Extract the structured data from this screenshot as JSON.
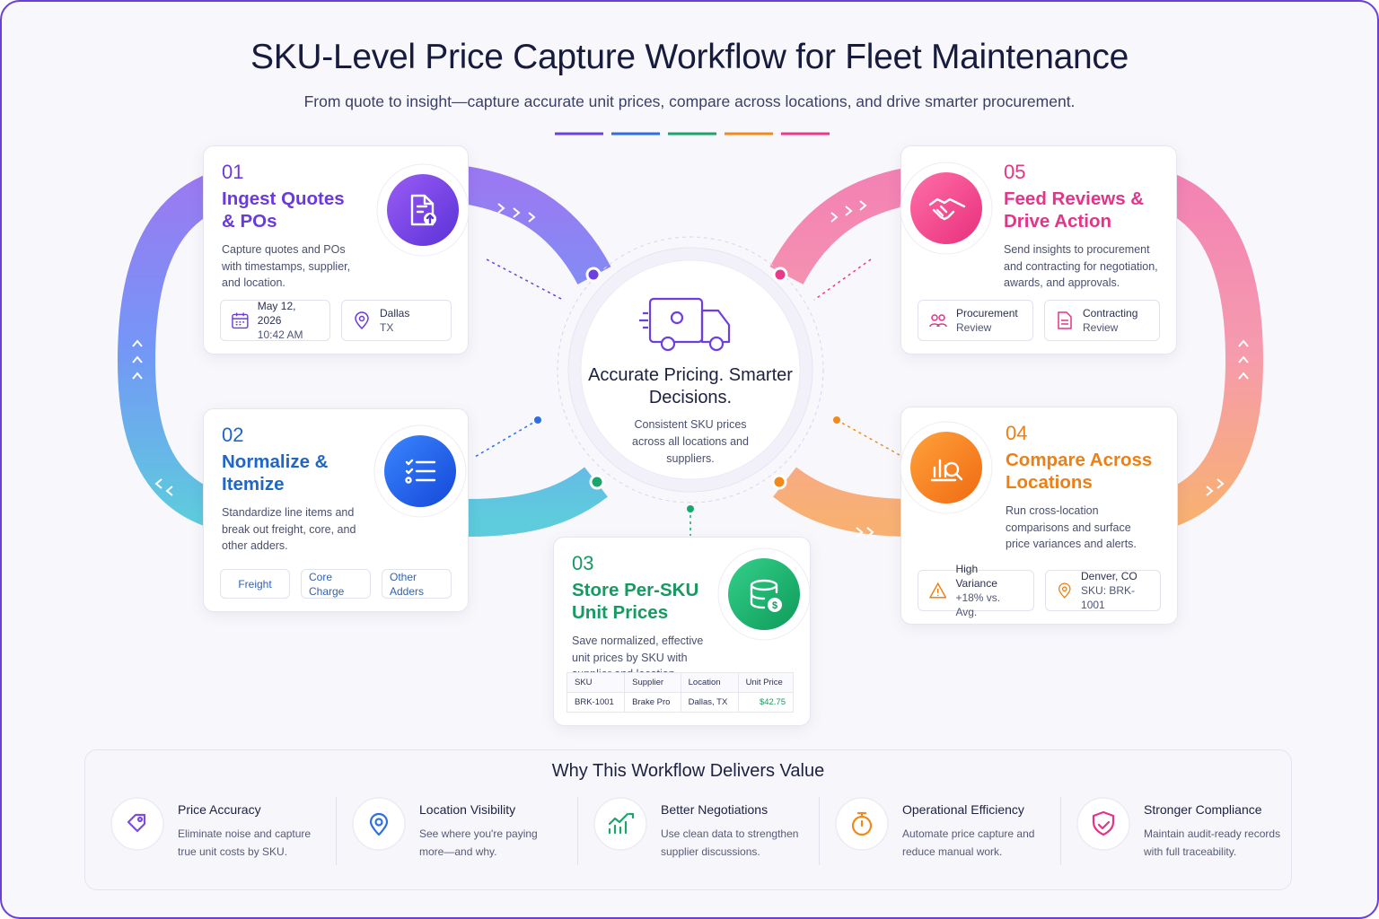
{
  "header": {
    "title": "SKU-Level Price Capture Workflow for Fleet Maintenance",
    "subtitle": "From quote to insight—capture accurate unit prices, compare across locations, and drive smarter procurement."
  },
  "center": {
    "title": "Accurate Pricing. Smarter Decisions.",
    "description": "Consistent SKU prices across all locations and suppliers."
  },
  "steps": [
    {
      "number": "01",
      "title": "Ingest Quotes & POs",
      "description": "Capture quotes and POs with timestamps, supplier, and location.",
      "chips": [
        {
          "label": "May 12, 2026",
          "detail": "10:42 AM"
        },
        {
          "label": "Dallas",
          "detail": "TX"
        }
      ]
    },
    {
      "number": "02",
      "title": "Normalize & Itemize",
      "description": "Standardize line items and break out freight, core, and other adders.",
      "chips": [
        {
          "label": "Freight"
        },
        {
          "label": "Core Charge"
        },
        {
          "label": "Other Adders"
        }
      ]
    },
    {
      "number": "03",
      "title": "Store Per-SKU Unit Prices",
      "description": "Save normalized, effective unit prices by SKU with supplier and location.",
      "table": {
        "columns": [
          "SKU",
          "Supplier",
          "Location",
          "Unit Price"
        ],
        "rows": [
          [
            "BRK-1001",
            "Brake Pro",
            "Dallas, TX",
            "$42.75"
          ]
        ]
      }
    },
    {
      "number": "04",
      "title": "Compare Across Locations",
      "description": "Run cross-location comparisons and surface price variances and alerts.",
      "chips": [
        {
          "label": "High Variance",
          "detail": "+18% vs. Avg."
        },
        {
          "label": "Denver, CO",
          "detail": "SKU: BRK-1001"
        }
      ]
    },
    {
      "number": "05",
      "title": "Feed Reviews & Drive Action",
      "description": "Send insights to procurement and contracting for negotiation, awards, and approvals.",
      "chips": [
        {
          "label": "Procurement",
          "detail": "Review"
        },
        {
          "label": "Contracting",
          "detail": "Review"
        }
      ]
    }
  ],
  "value": {
    "title": "Why This Workflow Delivers Value",
    "items": [
      {
        "title": "Price Accuracy",
        "description": "Eliminate noise and capture true unit costs by SKU."
      },
      {
        "title": "Location Visibility",
        "description": "See where you're paying more—and why."
      },
      {
        "title": "Better Negotiations",
        "description": "Use clean data to strengthen supplier discussions."
      },
      {
        "title": "Operational Efficiency",
        "description": "Automate price capture and reduce manual work."
      },
      {
        "title": "Stronger Compliance",
        "description": "Maintain audit-ready records with full traceability."
      }
    ]
  }
}
